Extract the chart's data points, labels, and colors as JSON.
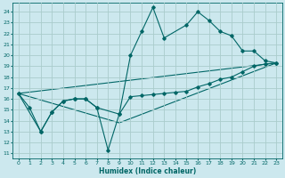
{
  "title": "",
  "xlabel": "Humidex (Indice chaleur)",
  "bg_color": "#cce8ee",
  "grid_color": "#aacccc",
  "line_color": "#006666",
  "xlim": [
    -0.5,
    23.5
  ],
  "ylim": [
    10.5,
    24.8
  ],
  "yticks": [
    11,
    12,
    13,
    14,
    15,
    16,
    17,
    18,
    19,
    20,
    21,
    22,
    23,
    24
  ],
  "xticks": [
    0,
    1,
    2,
    3,
    4,
    5,
    6,
    7,
    8,
    9,
    10,
    11,
    12,
    13,
    14,
    15,
    16,
    17,
    18,
    19,
    20,
    21,
    22,
    23
  ],
  "line1_x": [
    0,
    1,
    2,
    3,
    4,
    5,
    6,
    7,
    8,
    9,
    10,
    11,
    12,
    13,
    15,
    16,
    17,
    18,
    19,
    20,
    21,
    22,
    23
  ],
  "line1_y": [
    16.5,
    15.2,
    13.0,
    14.8,
    15.8,
    16.0,
    16.0,
    15.2,
    11.3,
    14.6,
    20.0,
    22.2,
    24.4,
    21.6,
    22.8,
    24.0,
    23.2,
    22.2,
    21.8,
    20.4,
    20.4,
    19.5,
    19.3
  ],
  "line2_x": [
    0,
    2,
    3,
    4,
    5,
    6,
    7,
    9,
    10,
    11,
    12,
    13,
    14,
    15,
    16,
    17,
    18,
    19,
    20,
    21,
    22,
    23
  ],
  "line2_y": [
    16.5,
    13.0,
    14.8,
    15.8,
    16.0,
    16.0,
    15.2,
    14.6,
    16.2,
    16.3,
    16.4,
    16.5,
    16.6,
    16.7,
    17.1,
    17.4,
    17.8,
    18.0,
    18.5,
    19.0,
    19.2,
    19.3
  ],
  "line3_x": [
    0,
    23
  ],
  "line3_y": [
    16.5,
    19.3
  ],
  "line4_x": [
    0,
    9,
    23
  ],
  "line4_y": [
    16.5,
    13.8,
    19.3
  ]
}
